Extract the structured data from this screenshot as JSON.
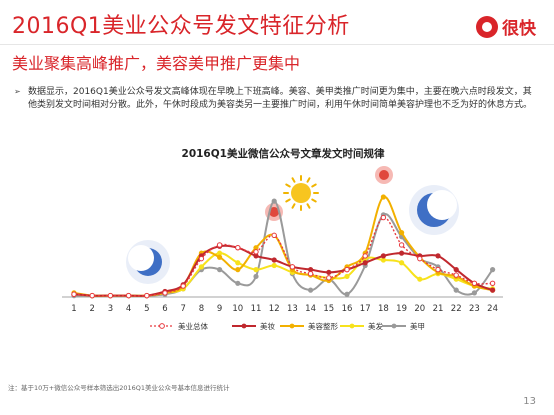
{
  "header": {
    "title": "2016Q1美业公众号发文特征分析",
    "subtitle": "美业聚集高峰推广，美容美甲推广更集中",
    "logo_text": "很快",
    "accent_color": "#d9252a"
  },
  "summary": {
    "bullet_icon": "triangle-right-icon",
    "text": "数据显示，2016Q1美业公众号发文高峰体现在早晚上下班高峰。美容、美甲类推广时间更为集中，主要在晚六点时段发文，其他类别发文时间相对分散。此外，午休时段成为美容类另一主要推广时间，利用午休时间简单美容护理也不乏为好的休息方式。"
  },
  "chart_data": {
    "type": "line",
    "title": "2016Q1美业微信公众号文章发文时间规律",
    "x": [
      1,
      2,
      3,
      4,
      5,
      6,
      7,
      8,
      9,
      10,
      11,
      12,
      13,
      14,
      15,
      16,
      17,
      18,
      19,
      20,
      21,
      22,
      23,
      24
    ],
    "ylim": [
      0,
      1
    ],
    "series": [
      {
        "name": "美业总体",
        "color": "#e8393f",
        "style": "dotted",
        "values": [
          0.02,
          0.01,
          0.01,
          0.01,
          0.01,
          0.03,
          0.08,
          0.28,
          0.38,
          0.36,
          0.33,
          0.45,
          0.22,
          0.17,
          0.14,
          0.2,
          0.3,
          0.58,
          0.38,
          0.28,
          0.2,
          0.16,
          0.1,
          0.1
        ]
      },
      {
        "name": "美妆",
        "color": "#c0282e",
        "style": "solid",
        "values": [
          0.02,
          0.01,
          0.01,
          0.01,
          0.01,
          0.04,
          0.09,
          0.3,
          0.37,
          0.36,
          0.3,
          0.27,
          0.22,
          0.2,
          0.18,
          0.2,
          0.25,
          0.3,
          0.32,
          0.3,
          0.3,
          0.2,
          0.1,
          0.05
        ]
      },
      {
        "name": "美容整形",
        "color": "#f2b000",
        "style": "solid",
        "values": [
          0.03,
          0.01,
          0.01,
          0.01,
          0.01,
          0.03,
          0.08,
          0.32,
          0.29,
          0.2,
          0.36,
          0.45,
          0.2,
          0.16,
          0.12,
          0.22,
          0.32,
          0.73,
          0.47,
          0.29,
          0.18,
          0.15,
          0.08,
          0.05
        ]
      },
      {
        "name": "美发",
        "color": "#f7e21c",
        "style": "solid",
        "values": [
          0.02,
          0.01,
          0.01,
          0.01,
          0.01,
          0.03,
          0.06,
          0.22,
          0.32,
          0.25,
          0.2,
          0.23,
          0.18,
          0.16,
          0.14,
          0.15,
          0.28,
          0.27,
          0.25,
          0.13,
          0.17,
          0.13,
          0.08,
          0.06
        ]
      },
      {
        "name": "美甲",
        "color": "#9a9a9a",
        "style": "solid",
        "values": [
          0.01,
          0.01,
          0.01,
          0.01,
          0.01,
          0.02,
          0.06,
          0.2,
          0.2,
          0.1,
          0.15,
          0.7,
          0.17,
          0.05,
          0.13,
          0.02,
          0.23,
          0.6,
          0.44,
          0.28,
          0.22,
          0.05,
          0.03,
          0.2
        ]
      }
    ],
    "legend": "bottom",
    "grid": false,
    "decorations": [
      "moon-icon",
      "sun-icon",
      "sun-icon",
      "sun-icon",
      "moon-icon"
    ]
  },
  "footer": {
    "note": "注：基于10万+微信公众号样本筛选出2016Q1美业公众号基本信息进行统计",
    "page": "13"
  }
}
